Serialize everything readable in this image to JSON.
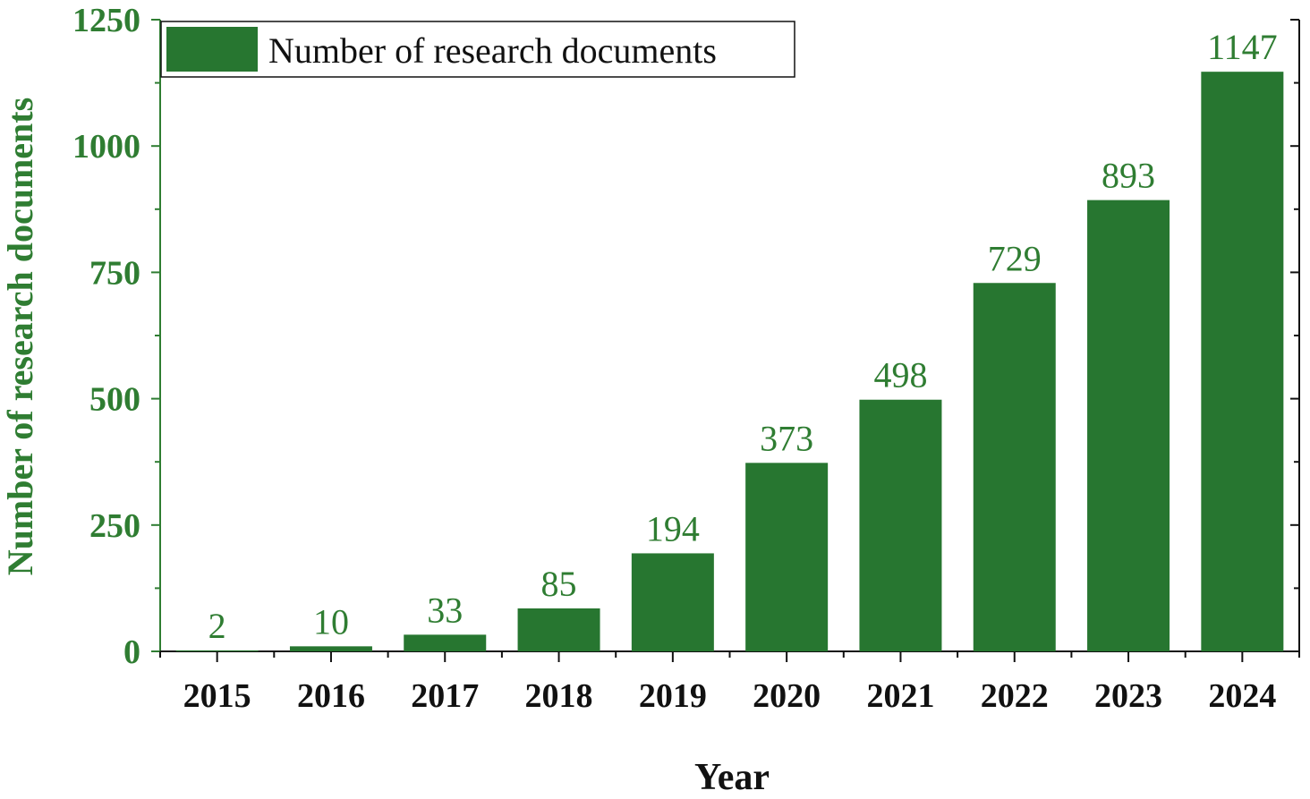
{
  "colors": {
    "bar": "#277630",
    "accent_text": "#2f7d32",
    "axis": "#111111",
    "frame_right": "#111111"
  },
  "chart_data": {
    "type": "bar",
    "categories": [
      "2015",
      "2016",
      "2017",
      "2018",
      "2019",
      "2020",
      "2021",
      "2022",
      "2023",
      "2024"
    ],
    "series": [
      {
        "name": "Number of research documents",
        "values": [
          2,
          10,
          33,
          85,
          194,
          373,
          498,
          729,
          893,
          1147
        ]
      }
    ],
    "data_labels": [
      "2",
      "10",
      "33",
      "85",
      "194",
      "373",
      "498",
      "729",
      "893",
      "1147"
    ],
    "xlabel": "Year",
    "ylabel": "Number of research documents",
    "ylim": [
      0,
      1250
    ],
    "yticks": [
      0,
      250,
      500,
      750,
      1000,
      1250
    ],
    "ytick_labels": [
      "0",
      "250",
      "500",
      "750",
      "1000",
      "1250"
    ],
    "grid": false,
    "legend_position": "top-left"
  }
}
